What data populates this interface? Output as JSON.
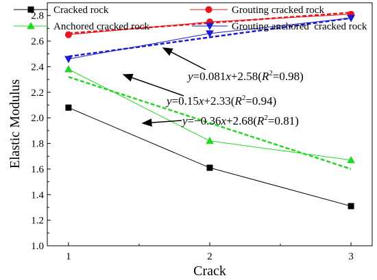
{
  "chart_data": {
    "type": "line",
    "xlabel": "Crack",
    "ylabel": "Elastic Modulus",
    "x": [
      1,
      2,
      3
    ],
    "xlim": [
      0.85,
      3.15
    ],
    "ylim": [
      1.0,
      2.9
    ],
    "xticks": [
      "1",
      "2",
      "3"
    ],
    "yticks": [
      "1.0",
      "1.2",
      "1.4",
      "1.6",
      "1.8",
      "2.0",
      "2.2",
      "2.4",
      "2.6",
      "2.8"
    ],
    "series": [
      {
        "name": "Cracked rock",
        "values": [
          2.08,
          1.61,
          1.31
        ],
        "color": "#000000",
        "marker": "square"
      },
      {
        "name": "Grouting cracked rock",
        "values": [
          2.65,
          2.75,
          2.81
        ],
        "color": "#e8141b",
        "marker": "circle"
      },
      {
        "name": "Anchored cracked rock",
        "values": [
          2.38,
          1.82,
          1.67
        ],
        "color": "#22d622",
        "marker": "triangle-up"
      },
      {
        "name": "Grouting anchored  cracked rock",
        "values": [
          2.46,
          2.66,
          2.78
        ],
        "color": "#1a1acf",
        "marker": "triangle-down"
      }
    ],
    "fits": [
      {
        "series": "Grouting cracked rock",
        "slope": 0.081,
        "intercept": 2.58,
        "color": "#e8141b"
      },
      {
        "series": "Grouting anchored  cracked rock",
        "slope": 0.15,
        "intercept": 2.33,
        "color": "#1a1acf"
      },
      {
        "series": "Anchored cracked rock",
        "slope": -0.36,
        "intercept": 2.68,
        "color": "#22d622"
      }
    ],
    "annotations": [
      {
        "y_part": "y",
        "rest": "=0.081",
        "x_part": "x",
        "tail": "+2.58(",
        "r_part": "R",
        "sup": "2",
        "end": "=0.98)"
      },
      {
        "y_part": "y",
        "rest": "=0.15",
        "x_part": "x",
        "tail": "+2.33(",
        "r_part": "R",
        "sup": "2",
        "end": "=0.94)"
      },
      {
        "y_part": "y",
        "rest": "=−0.36",
        "x_part": "x",
        "tail": "+2.68(",
        "r_part": "R",
        "sup": "2",
        "end": "=0.81)"
      }
    ],
    "legend_position": "top",
    "grid": false
  }
}
